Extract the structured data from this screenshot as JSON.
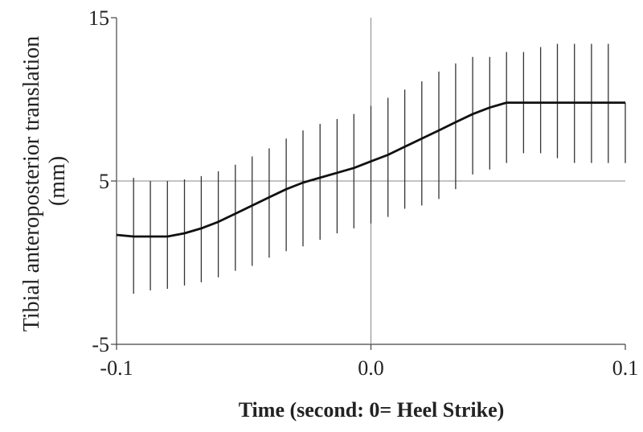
{
  "chart_data": {
    "type": "line",
    "title": "",
    "xlabel": "Time (second: 0= Heel Strike)",
    "ylabel_line1": "Tibial anteroposterior translation",
    "ylabel_line2": "(mm)",
    "xlim": [
      -0.1,
      0.1
    ],
    "ylim": [
      -5,
      15
    ],
    "x_ticks": [
      {
        "value": -0.1,
        "label": "-0.1"
      },
      {
        "value": 0.0,
        "label": "0.0"
      },
      {
        "value": 0.1,
        "label": "0.1"
      }
    ],
    "y_ticks": [
      {
        "value": -5,
        "label": "-5"
      },
      {
        "value": 5,
        "label": "5"
      },
      {
        "value": 15,
        "label": "15"
      }
    ],
    "reference_lines": {
      "x": [
        0.0
      ],
      "y": [
        5
      ]
    },
    "grid": false,
    "legend": "none",
    "series": [
      {
        "x": [
          -0.1,
          -0.0933,
          -0.0867,
          -0.08,
          -0.0733,
          -0.0667,
          -0.06,
          -0.0533,
          -0.0467,
          -0.04,
          -0.0333,
          -0.0267,
          -0.02,
          -0.0133,
          -0.0067,
          0.0,
          0.0067,
          0.0133,
          0.02,
          0.0267,
          0.0333,
          0.04,
          0.0467,
          0.0533,
          0.06,
          0.0667,
          0.0733,
          0.08,
          0.0867,
          0.0933,
          0.1
        ],
        "y": [
          1.7,
          1.6,
          1.6,
          1.6,
          1.8,
          2.1,
          2.5,
          3.0,
          3.5,
          4.0,
          4.5,
          4.9,
          5.2,
          5.5,
          5.8,
          6.2,
          6.6,
          7.1,
          7.6,
          8.1,
          8.6,
          9.1,
          9.5,
          9.8,
          9.8,
          9.8,
          9.8,
          9.8,
          9.8,
          9.8,
          9.8
        ],
        "lower": [
          1.7,
          -1.9,
          -1.7,
          -1.6,
          -1.4,
          -1.2,
          -0.9,
          -0.5,
          -0.2,
          0.3,
          0.7,
          1.0,
          1.4,
          1.8,
          2.1,
          2.4,
          2.8,
          3.3,
          3.5,
          3.9,
          4.5,
          5.4,
          5.7,
          6.1,
          6.7,
          6.7,
          6.4,
          6.1,
          6.1,
          6.1,
          6.1
        ],
        "upper": [
          1.7,
          5.2,
          5.0,
          5.0,
          5.1,
          5.3,
          5.6,
          6.0,
          6.5,
          7.0,
          7.6,
          8.1,
          8.5,
          8.8,
          9.1,
          9.6,
          10.1,
          10.6,
          11.1,
          11.7,
          12.2,
          12.6,
          12.6,
          12.9,
          12.9,
          13.2,
          13.4,
          13.4,
          13.4,
          13.4,
          9.8
        ],
        "color": "#111111"
      }
    ],
    "colors": {
      "axis": "#444444",
      "refline": "#888888",
      "line": "#111111",
      "errorbar": "#333333"
    }
  }
}
